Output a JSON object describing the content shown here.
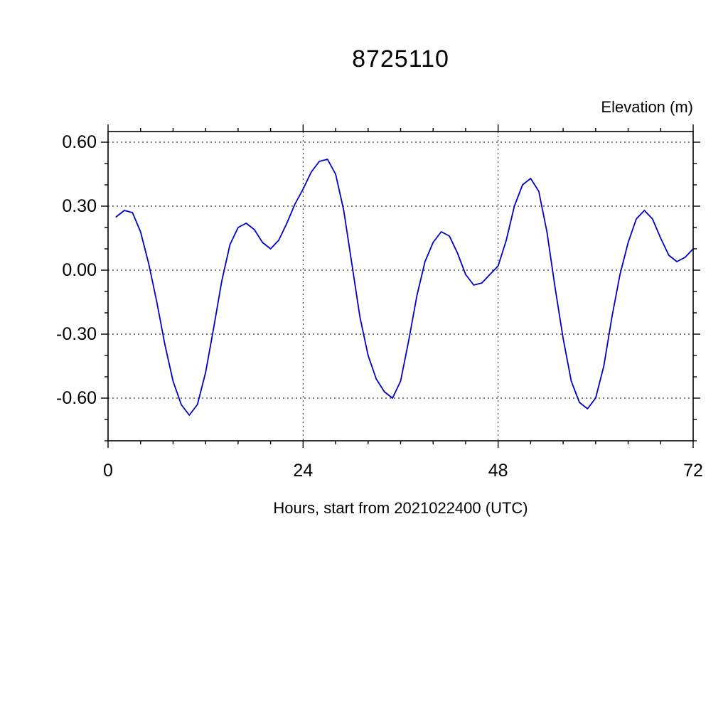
{
  "figure": {
    "title": "8725110",
    "y_axis_title": "Elevation (m)",
    "x_axis_label": "Hours, start from 2021022400 (UTC)"
  },
  "chart_data": {
    "type": "line",
    "title": "8725110",
    "xlabel": "Hours, start from 2021022400 (UTC)",
    "ylabel": "Elevation (m)",
    "xlim": [
      0,
      72
    ],
    "ylim": [
      -0.8,
      0.65
    ],
    "grid": true,
    "legend": "none",
    "line_color": "#0000C8",
    "x_major_ticks": [
      0,
      24,
      48,
      72
    ],
    "x_tick_labels": [
      "0",
      "24",
      "48",
      "72"
    ],
    "x_minor_step": 4,
    "x_grid": [
      24,
      48
    ],
    "y_major_ticks": [
      0.6,
      0.3,
      0.0,
      -0.3,
      -0.6
    ],
    "y_tick_labels": [
      "0.60",
      "0.30",
      "0.00",
      "-0.30",
      "-0.60"
    ],
    "y_minor_step": 0.1,
    "series": [
      {
        "name": "elevation",
        "x": [
          1,
          2,
          3,
          4,
          5,
          6,
          7,
          8,
          9,
          10,
          11,
          12,
          13,
          14,
          15,
          16,
          17,
          18,
          19,
          20,
          21,
          22,
          23,
          24,
          25,
          26,
          27,
          28,
          29,
          30,
          31,
          32,
          33,
          34,
          35,
          36,
          37,
          38,
          39,
          40,
          41,
          42,
          43,
          44,
          45,
          46,
          47,
          48,
          49,
          50,
          51,
          52,
          53,
          54,
          55,
          56,
          57,
          58,
          59,
          60,
          61,
          62,
          63,
          64,
          65,
          66,
          67,
          68,
          69,
          70,
          71,
          72
        ],
        "values": [
          0.25,
          0.28,
          0.27,
          0.18,
          0.03,
          -0.15,
          -0.35,
          -0.52,
          -0.63,
          -0.68,
          -0.63,
          -0.48,
          -0.27,
          -0.05,
          0.12,
          0.2,
          0.22,
          0.19,
          0.13,
          0.1,
          0.14,
          0.22,
          0.31,
          0.38,
          0.46,
          0.51,
          0.52,
          0.45,
          0.28,
          0.03,
          -0.22,
          -0.4,
          -0.51,
          -0.57,
          -0.6,
          -0.52,
          -0.33,
          -0.12,
          0.04,
          0.13,
          0.18,
          0.16,
          0.08,
          -0.02,
          -0.07,
          -0.06,
          -0.02,
          0.02,
          0.14,
          0.3,
          0.4,
          0.43,
          0.37,
          0.18,
          -0.08,
          -0.32,
          -0.52,
          -0.62,
          -0.65,
          -0.6,
          -0.45,
          -0.22,
          -0.02,
          0.13,
          0.24,
          0.28,
          0.24,
          0.15,
          0.07,
          0.04,
          0.06,
          0.1
        ]
      }
    ]
  }
}
